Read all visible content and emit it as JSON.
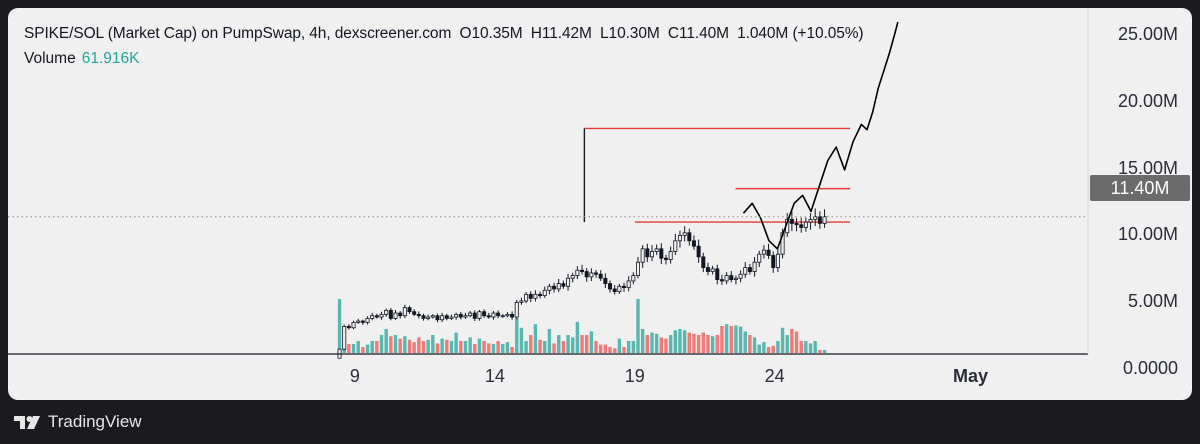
{
  "header": {
    "pair": "SPIKE/SOL (Market Cap) on PumpSwap, 4h, dexscreener.com",
    "open": "O10.35M",
    "high": "H11.42M",
    "low": "L10.30M",
    "close": "C11.40M",
    "change": "1.040M (+10.05%)"
  },
  "volume": {
    "label": "Volume",
    "value": "61.916K"
  },
  "current_price_label": "11.40M",
  "footer": {
    "brand": "TradingView"
  },
  "colors": {
    "up_volume": "#26a69a",
    "down_volume": "#ef5350",
    "level_lines": "#e53935",
    "candles": "#131722",
    "panel_bg": "#f0f0f0",
    "frame_bg": "#1b1b1f"
  },
  "chart_data": {
    "type": "candlestick",
    "timeframe": "4h",
    "y_axis": {
      "ticks": [
        "25.00M",
        "20.00M",
        "15.00M",
        "10.00M",
        "5.00M",
        "0.0000"
      ],
      "tick_values": [
        25000000,
        20000000,
        15000000,
        10000000,
        5000000,
        0
      ],
      "range": [
        -2300000,
        27000000
      ]
    },
    "x_axis": {
      "ticks": [
        {
          "label": "9",
          "day": 9
        },
        {
          "label": "14",
          "day": 14
        },
        {
          "label": "19",
          "day": 19
        },
        {
          "label": "24",
          "day": 24
        },
        {
          "label": "May",
          "day": 31
        }
      ],
      "range_days": [
        -3.4,
        35.2
      ]
    },
    "last_price": 11400000,
    "series": [
      {
        "name": "Price",
        "values": [
          1.5,
          3.2,
          3.1,
          3.5,
          3.6,
          3.5,
          3.8,
          4.0,
          3.9,
          4.1,
          4.4,
          3.8,
          4.2,
          4.0,
          4.6,
          4.3,
          4.1,
          4.0,
          3.8,
          3.9,
          4.0,
          3.7,
          4.0,
          3.8,
          3.9,
          4.1,
          3.9,
          4.0,
          4.2,
          3.8,
          4.3,
          4.0,
          3.9,
          4.2,
          4.0,
          4.0,
          4.1,
          3.9,
          5.0,
          5.1,
          5.6,
          5.3,
          5.6,
          5.5,
          5.9,
          6.2,
          6.0,
          6.4,
          6.2,
          6.8,
          7.0,
          7.4,
          7.3,
          6.9,
          7.2,
          7.1,
          6.8,
          6.4,
          6.0,
          5.8,
          6.2,
          6.1,
          6.6,
          7.0,
          8.0,
          9.0,
          8.4,
          8.8,
          9.0,
          8.3,
          8.2,
          8.8,
          9.6,
          10.0,
          10.2,
          9.6,
          9.2,
          8.4,
          7.6,
          7.3,
          7.5,
          6.7,
          6.6,
          7.0,
          6.7,
          6.8,
          7.1,
          7.6,
          7.3,
          8.0,
          8.6,
          8.9,
          8.5,
          7.6,
          8.6,
          10.2,
          11.2,
          10.9,
          10.8,
          10.6,
          11.0,
          11.2,
          11.4,
          10.9,
          11.4
        ]
      },
      {
        "name": "Volume",
        "values": [
          0.9,
          0.25,
          0.15,
          0.15,
          0.2,
          0.1,
          0.14,
          0.2,
          0.2,
          0.3,
          0.4,
          0.28,
          0.3,
          0.24,
          0.28,
          0.22,
          0.18,
          0.26,
          0.2,
          0.22,
          0.3,
          0.16,
          0.24,
          0.22,
          0.2,
          0.34,
          0.2,
          0.2,
          0.26,
          0.15,
          0.24,
          0.2,
          0.16,
          0.15,
          0.2,
          0.15,
          0.18,
          0.1,
          0.58,
          0.42,
          0.2,
          0.3,
          0.48,
          0.22,
          0.2,
          0.4,
          0.16,
          0.3,
          0.2,
          0.3,
          0.26,
          0.52,
          0.3,
          0.3,
          0.36,
          0.2,
          0.14,
          0.14,
          0.1,
          0.08,
          0.24,
          0.1,
          0.2,
          0.2,
          0.9,
          0.4,
          0.3,
          0.34,
          0.32,
          0.26,
          0.24,
          0.3,
          0.38,
          0.4,
          0.38,
          0.34,
          0.32,
          0.3,
          0.34,
          0.3,
          0.28,
          0.3,
          0.45,
          0.48,
          0.45,
          0.46,
          0.44,
          0.36,
          0.3,
          0.26,
          0.14,
          0.18,
          0.1,
          0.12,
          0.2,
          0.42,
          0.3,
          0.4,
          0.36,
          0.2,
          0.2,
          0.16,
          0.2,
          0.05,
          0.05
        ]
      }
    ],
    "levels": [
      {
        "value": 18000000,
        "from_day": 17.2,
        "to_day": 26.7
      },
      {
        "value": 13500000,
        "from_day": 22.6,
        "to_day": 26.7
      },
      {
        "value": 11000000,
        "from_day": 19.0,
        "to_day": 26.7
      },
      {
        "value": 11000000,
        "from_day": 17.2,
        "to_day": 17.2,
        "to_value": 18000000
      }
    ],
    "projection": {
      "days": [
        22.9,
        23.2,
        23.5,
        23.8,
        24.1,
        24.4,
        24.7,
        25.0,
        25.3,
        25.6,
        25.9,
        26.2,
        26.5,
        26.8,
        27.1,
        27.3,
        27.5,
        27.7,
        27.9,
        28.1,
        28.3,
        28.4
      ],
      "values": [
        11700000,
        12400000,
        11300000,
        9600000,
        9000000,
        10700000,
        12400000,
        13000000,
        11800000,
        13700000,
        15600000,
        16600000,
        14900000,
        17000000,
        18300000,
        17900000,
        19200000,
        21000000,
        22300000,
        23600000,
        25100000,
        25900000
      ]
    },
    "current_price_line": {
      "value": 11400000,
      "style": "dotted"
    },
    "grid": false
  }
}
